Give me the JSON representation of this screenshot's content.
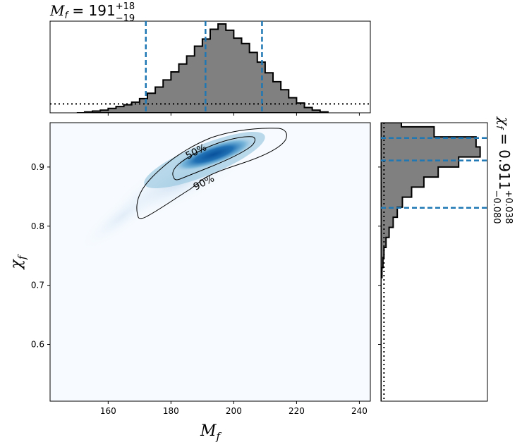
{
  "chart_data": {
    "type": "corner",
    "parameters": {
      "x": {
        "name": "Mf",
        "label_base": "M",
        "label_sub": "f"
      },
      "y": {
        "name": "chi_f",
        "label_base": "χ",
        "label_sub": "f"
      }
    },
    "title_x": {
      "base": "M",
      "sub": "f",
      "eq": " = 191",
      "plus": "+18",
      "minus": "−19"
    },
    "title_y": {
      "base": "χ",
      "sub": "f",
      "eq": " = 0.911",
      "plus": "+0.038",
      "minus": "−0.080"
    },
    "x_axis": {
      "ticks": [
        160,
        180,
        200,
        220,
        240
      ],
      "tick_labels": [
        "160",
        "180",
        "200",
        "220",
        "240"
      ],
      "lim": [
        141.5,
        243.5
      ]
    },
    "y_axis": {
      "ticks": [
        0.6,
        0.7,
        0.8,
        0.9
      ],
      "tick_labels": [
        "0.6",
        "0.7",
        "0.8",
        "0.9"
      ],
      "lim": [
        0.504,
        0.975
      ]
    },
    "marginal_x": {
      "type": "step-histogram",
      "bin_edges": [
        150,
        152.5,
        155,
        157.5,
        160,
        162.5,
        165,
        167.5,
        170,
        172.5,
        175,
        177.5,
        180,
        182.5,
        185,
        187.5,
        190,
        192.5,
        195,
        197.5,
        200,
        202.5,
        205,
        207.5,
        210,
        212.5,
        215,
        217.5,
        220,
        222.5,
        225,
        227.5,
        230
      ],
      "density": [
        0.0,
        0.01,
        0.02,
        0.03,
        0.05,
        0.07,
        0.09,
        0.12,
        0.16,
        0.22,
        0.29,
        0.37,
        0.46,
        0.55,
        0.64,
        0.75,
        0.83,
        0.94,
        1.0,
        0.93,
        0.84,
        0.78,
        0.68,
        0.57,
        0.45,
        0.35,
        0.26,
        0.17,
        0.11,
        0.06,
        0.03,
        0.01
      ],
      "quantile_lines": [
        172,
        191,
        209
      ],
      "prior_level": 0.1
    },
    "marginal_y": {
      "type": "step-histogram",
      "bin_edges": [
        0.504,
        0.713,
        0.73,
        0.747,
        0.764,
        0.781,
        0.798,
        0.815,
        0.832,
        0.849,
        0.866,
        0.883,
        0.9,
        0.917,
        0.934,
        0.951,
        0.968,
        0.975
      ],
      "density": [
        0.0,
        0.01,
        0.02,
        0.03,
        0.05,
        0.08,
        0.12,
        0.16,
        0.21,
        0.3,
        0.42,
        0.56,
        0.76,
        0.97,
        0.93,
        0.52,
        0.2
      ],
      "quantile_lines": [
        0.831,
        0.911,
        0.949
      ],
      "prior_level": 0.03
    },
    "joint_2d": {
      "type": "kde-contour",
      "peak": {
        "x": 193,
        "y": 0.918
      },
      "contours": [
        {
          "label": "50%"
        },
        {
          "label": "90%"
        }
      ]
    },
    "colors": {
      "density": "#1f77b4",
      "hist_fill": "#808080",
      "quantile": "#1f77b4",
      "line": "#000000"
    }
  }
}
